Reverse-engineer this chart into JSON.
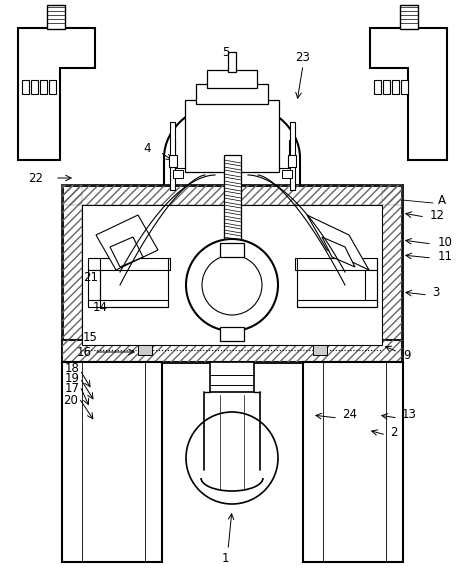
{
  "bg_color": "#ffffff",
  "line_color": "#000000",
  "figsize": [
    4.65,
    5.87
  ],
  "dpi": 100
}
